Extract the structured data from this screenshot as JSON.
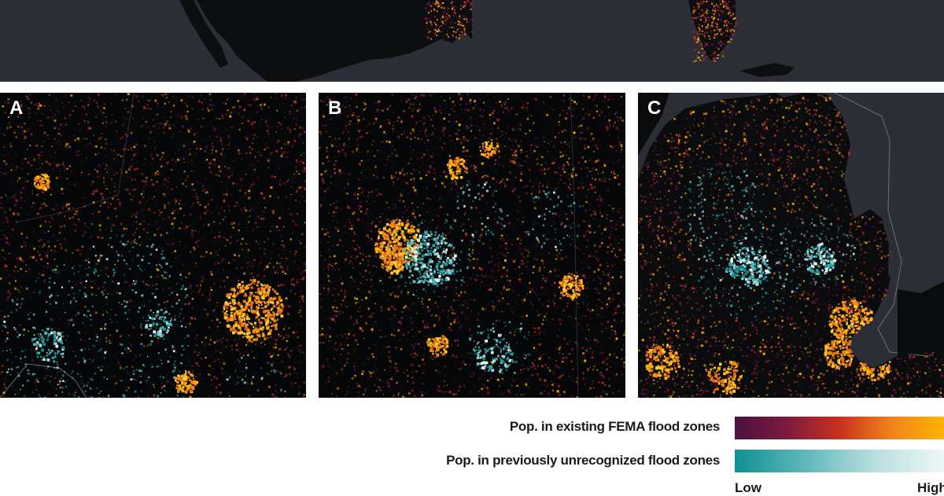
{
  "panels": [
    {
      "label": "A"
    },
    {
      "label": "B"
    },
    {
      "label": "C"
    }
  ],
  "legend": {
    "existing": {
      "label": "Pop. in existing FEMA flood zones",
      "colors": [
        "#4a1240",
        "#7d1a3e",
        "#c8301e",
        "#f0851a",
        "#ffb300"
      ]
    },
    "unrecognized": {
      "label": "Pop. in previously unrecognized flood zones",
      "colors": [
        "#0f8f94",
        "#5fb7ba",
        "#b9dedf",
        "#eef7f7"
      ]
    },
    "low": "Low",
    "high": "High"
  },
  "colors": {
    "map_background": "#060708",
    "water": "#2b2f35",
    "land_dark": "#0c0d0f"
  }
}
